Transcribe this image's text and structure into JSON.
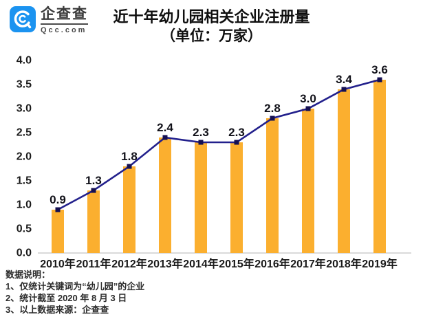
{
  "brand": {
    "logo_cn": "企查查",
    "logo_en": "Qcc.com",
    "logo_color": "#1B93F0"
  },
  "title": {
    "line1": "近十年幼儿园相关企业注册量",
    "line2": "（单位：万家）"
  },
  "chart_data": {
    "type": "bar",
    "subtype": "bar-with-line-overlay",
    "title": "近十年幼儿园相关企业注册量（单位：万家）",
    "categories": [
      "2010年",
      "2011年",
      "2012年",
      "2013年",
      "2014年",
      "2015年",
      "2016年",
      "2017年",
      "2018年",
      "2019年"
    ],
    "values": [
      0.9,
      1.3,
      1.8,
      2.4,
      2.3,
      2.3,
      2.8,
      3.0,
      3.4,
      3.6
    ],
    "xlabel": "",
    "ylabel": "万家",
    "ylim": [
      0.0,
      4.0
    ],
    "ytick_step": 0.5,
    "grid": false,
    "legend": "none",
    "bar_color": "#FBAF2F",
    "line_color": "#22208C",
    "marker_color": "#151052",
    "axis_line_color": "#DADADA"
  },
  "notes": {
    "heading": "数据说明：",
    "items": [
      "1、仅统计关键词为“幼儿园”的企业",
      "2、统计截至 2020 年 8 月 3 日",
      "3、以上数据来源：企查查"
    ]
  }
}
